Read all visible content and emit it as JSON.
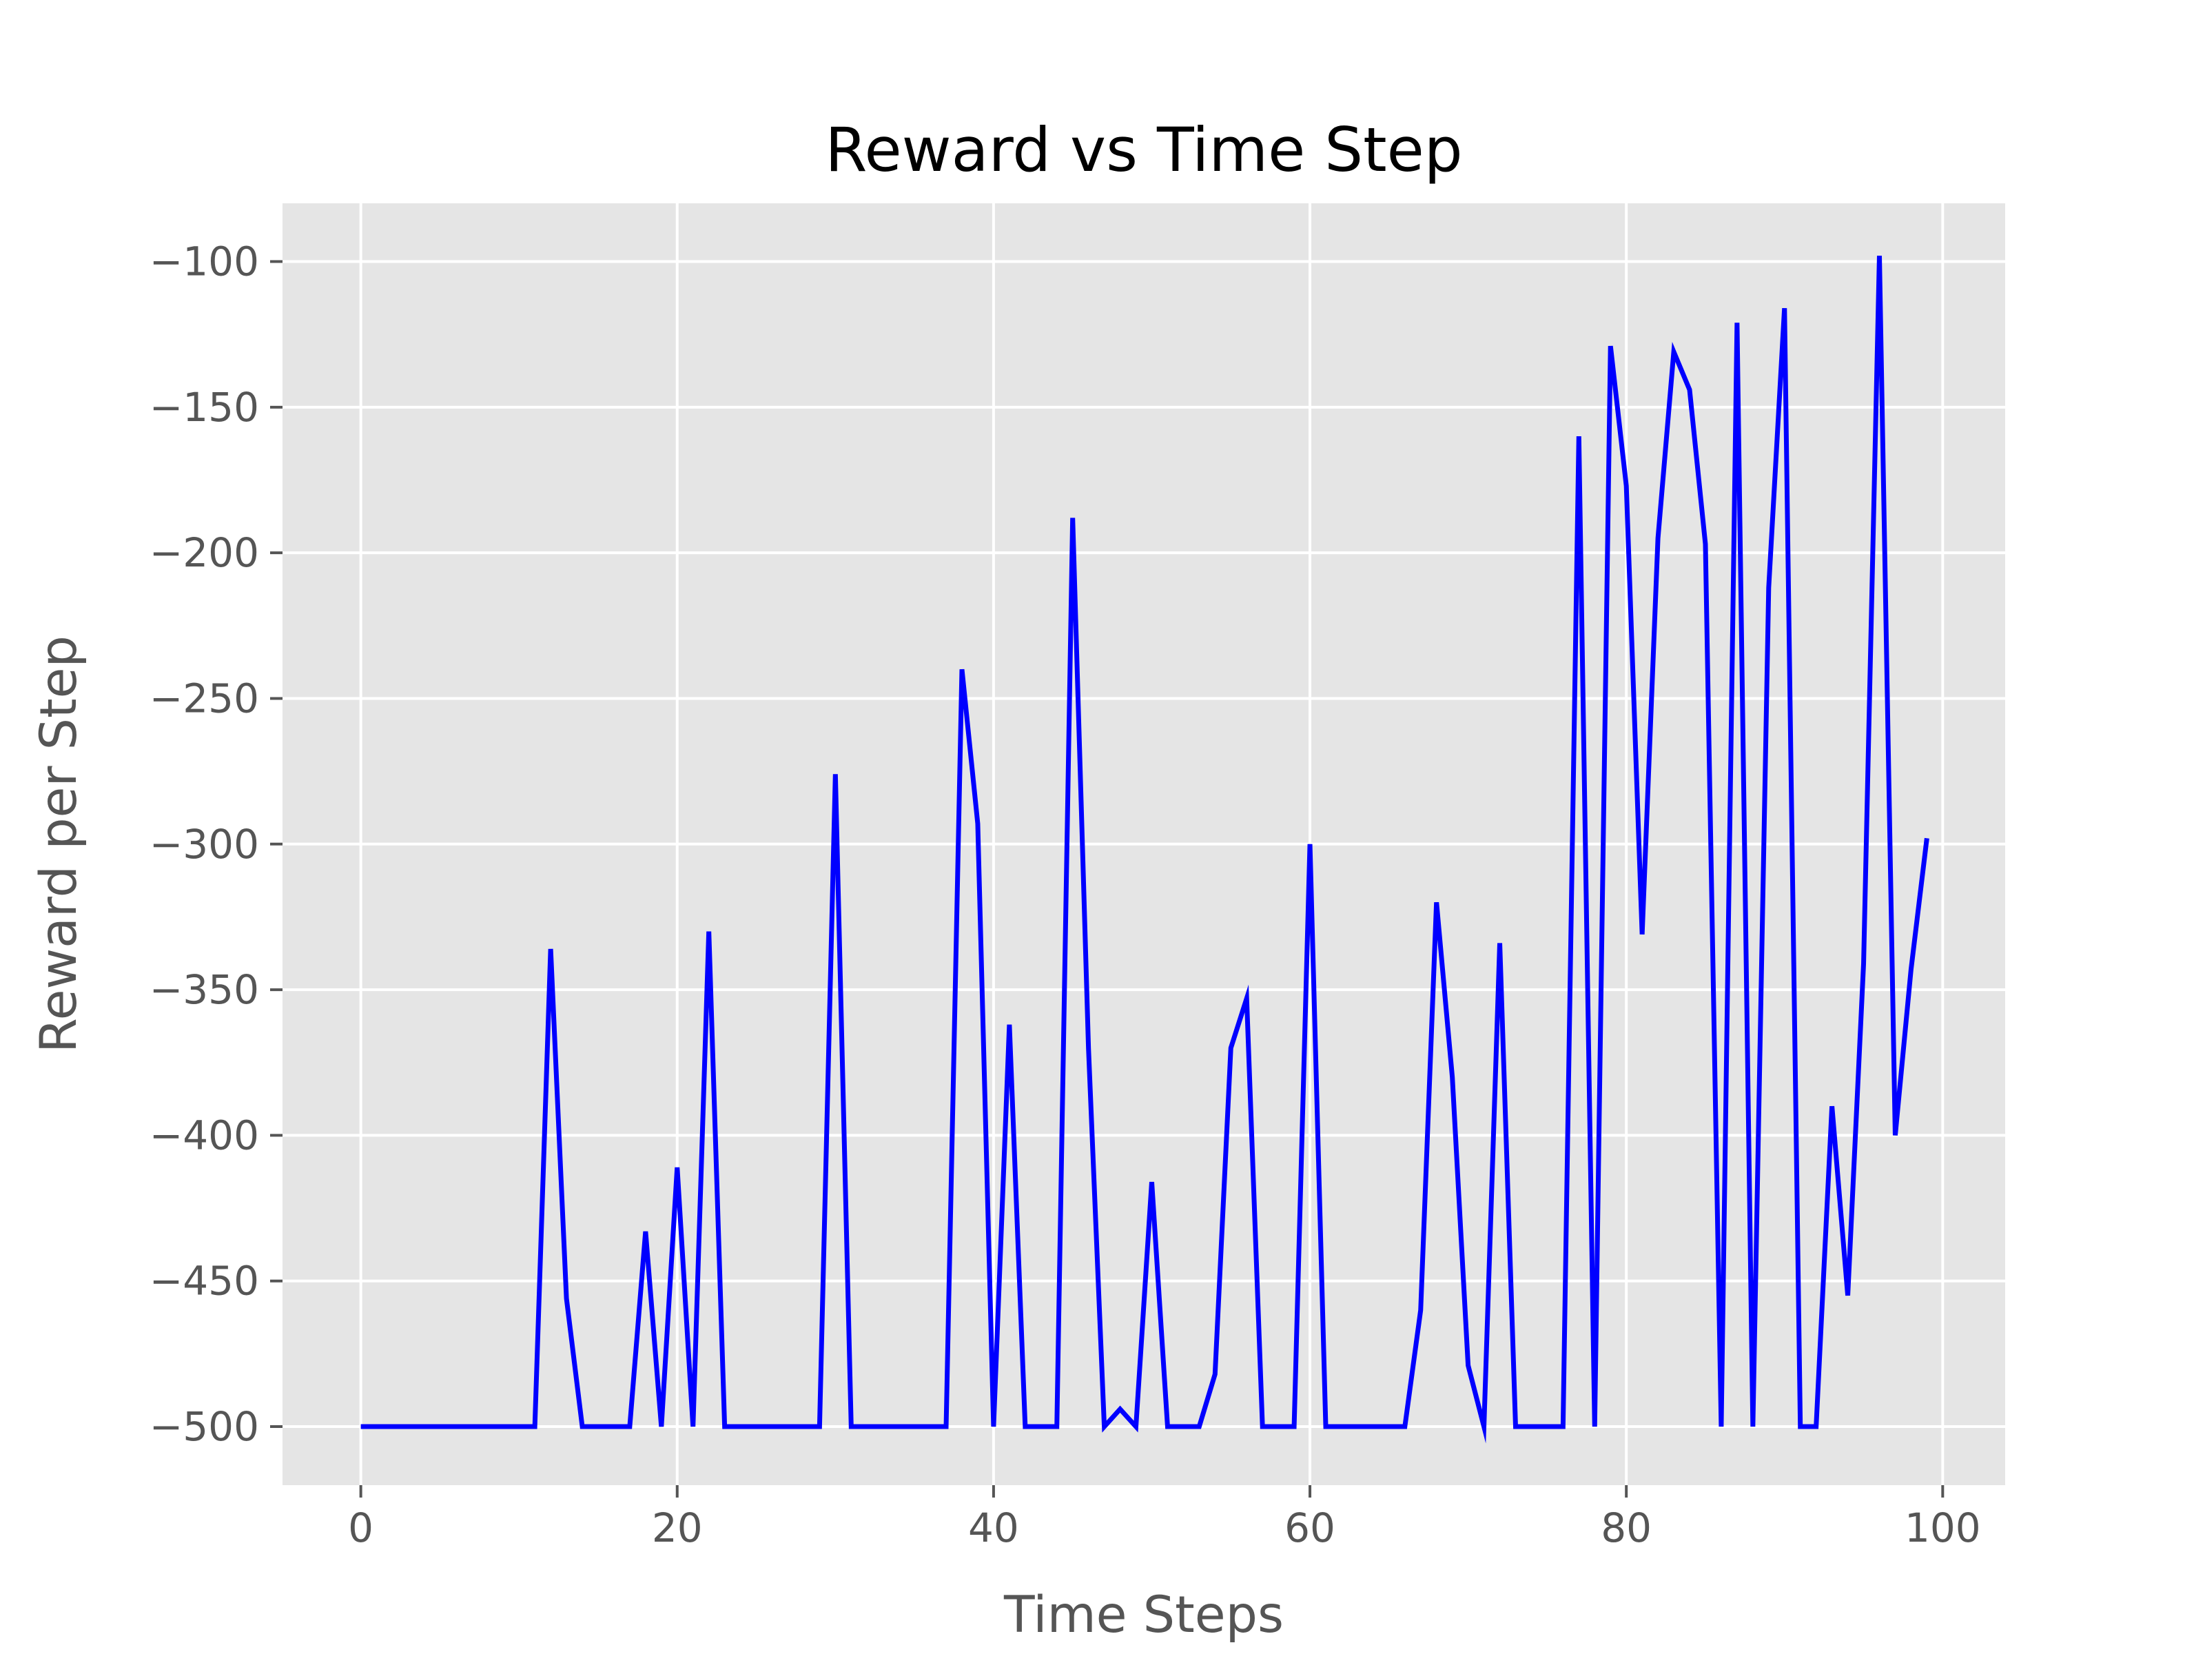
{
  "chart_data": {
    "type": "line",
    "title": "Reward vs Time Step",
    "xlabel": "Time Steps",
    "ylabel": "Reward per Step",
    "xlim": [
      -4.95,
      103.95
    ],
    "ylim": [
      -520.1,
      -80.0
    ],
    "xticks": [
      0,
      20,
      40,
      60,
      80,
      100
    ],
    "yticks": [
      -500,
      -450,
      -400,
      -350,
      -300,
      -250,
      -200,
      -150,
      -100
    ],
    "x_tick_labels": [
      "0",
      "20",
      "40",
      "60",
      "80",
      "100"
    ],
    "y_tick_labels": [
      "−500",
      "−450",
      "−400",
      "−350",
      "−300",
      "−250",
      "−200",
      "−150",
      "−100"
    ],
    "grid": true,
    "style": "ggplot",
    "background_color": "#e5e5e5",
    "grid_color": "#ffffff",
    "line_color": "#0000ff",
    "series": [
      {
        "x": [
          0,
          1,
          2,
          3,
          4,
          5,
          6,
          7,
          8,
          9,
          10,
          11,
          12,
          13,
          14,
          15,
          16,
          17,
          18,
          19,
          20,
          21,
          22,
          23,
          24,
          25,
          26,
          27,
          28,
          29,
          30,
          31,
          32,
          33,
          34,
          35,
          36,
          37,
          38,
          39,
          40,
          41,
          42,
          43,
          44,
          45,
          46,
          47,
          48,
          49,
          50,
          51,
          52,
          53,
          54,
          55,
          56,
          57,
          58,
          59,
          60,
          61,
          62,
          63,
          64,
          65,
          66,
          67,
          68,
          69,
          70,
          71,
          72,
          73,
          74,
          75,
          76,
          77,
          78,
          79,
          80,
          81,
          82,
          83,
          84,
          85,
          86,
          87,
          88,
          89,
          90,
          91,
          92,
          93,
          94,
          95,
          96,
          97,
          98,
          99
        ],
        "values": [
          -500,
          -500,
          -500,
          -500,
          -500,
          -500,
          -500,
          -500,
          -500,
          -500,
          -500,
          -500,
          -336,
          -456,
          -500,
          -500,
          -500,
          -500,
          -433,
          -500,
          -411,
          -500,
          -330,
          -500,
          -500,
          -500,
          -500,
          -500,
          -500,
          -500,
          -276,
          -500,
          -500,
          -500,
          -500,
          -500,
          -500,
          -500,
          -240,
          -293,
          -500,
          -362,
          -500,
          -500,
          -500,
          -188,
          -370,
          -500,
          -494,
          -500,
          -416,
          -500,
          -500,
          -500,
          -482,
          -370,
          -353,
          -500,
          -500,
          -500,
          -300,
          -500,
          -500,
          -500,
          -500,
          -500,
          -500,
          -460,
          -320,
          -380,
          -479,
          -500,
          -334,
          -500,
          -500,
          -500,
          -500,
          -160,
          -500,
          -129,
          -177,
          -331,
          -195,
          -131,
          -144,
          -197,
          -500,
          -121,
          -500,
          -212,
          -116,
          -500,
          -500,
          -390,
          -455,
          -341,
          -98,
          -400,
          -343,
          -298
        ]
      }
    ]
  }
}
